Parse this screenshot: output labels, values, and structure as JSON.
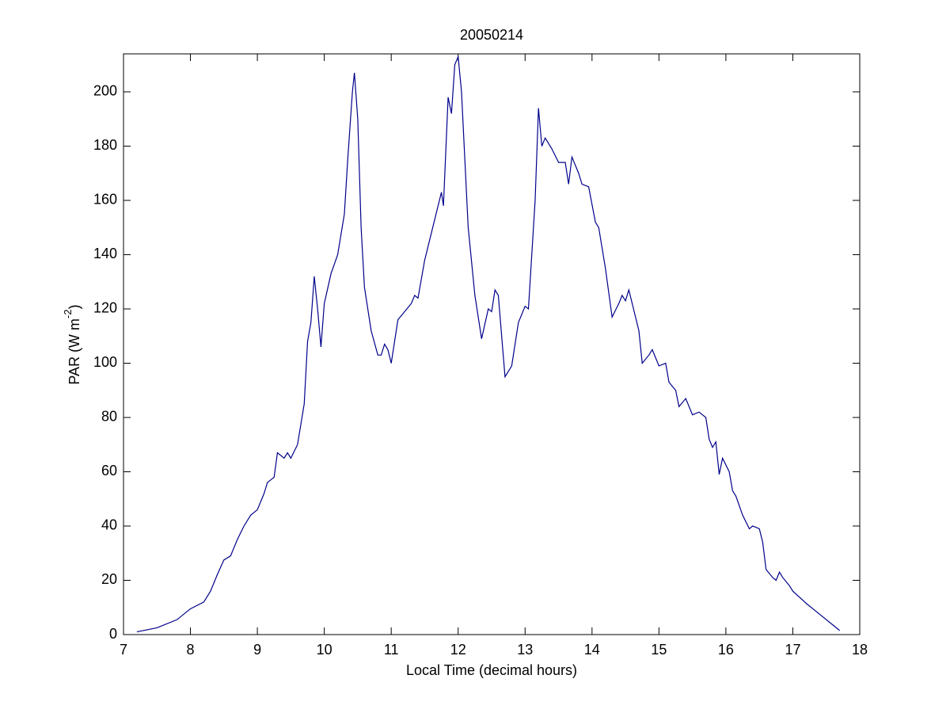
{
  "chart_data": {
    "type": "line",
    "title": "20050214",
    "xlabel": "Local Time (decimal hours)",
    "ylabel_parts": [
      "PAR (W m",
      "-2",
      ")"
    ],
    "x": [
      7.2,
      7.5,
      7.8,
      8.0,
      8.2,
      8.3,
      8.4,
      8.5,
      8.6,
      8.7,
      8.8,
      8.9,
      9.0,
      9.1,
      9.15,
      9.25,
      9.3,
      9.4,
      9.45,
      9.5,
      9.6,
      9.7,
      9.75,
      9.8,
      9.85,
      9.9,
      9.95,
      10.0,
      10.1,
      10.2,
      10.3,
      10.35,
      10.42,
      10.45,
      10.5,
      10.55,
      10.6,
      10.7,
      10.8,
      10.85,
      10.9,
      10.95,
      11.0,
      11.1,
      11.2,
      11.3,
      11.35,
      11.4,
      11.5,
      11.6,
      11.65,
      11.75,
      11.78,
      11.85,
      11.9,
      11.95,
      12.0,
      12.05,
      12.15,
      12.25,
      12.35,
      12.45,
      12.5,
      12.55,
      12.6,
      12.7,
      12.8,
      12.9,
      13.0,
      13.05,
      13.15,
      13.2,
      13.25,
      13.3,
      13.4,
      13.5,
      13.6,
      13.65,
      13.7,
      13.8,
      13.85,
      13.95,
      14.05,
      14.1,
      14.2,
      14.3,
      14.4,
      14.45,
      14.5,
      14.55,
      14.6,
      14.7,
      14.75,
      14.85,
      14.9,
      15.0,
      15.1,
      15.15,
      15.25,
      15.3,
      15.4,
      15.5,
      15.6,
      15.7,
      15.75,
      15.8,
      15.85,
      15.9,
      15.95,
      16.05,
      16.1,
      16.15,
      16.25,
      16.35,
      16.4,
      16.5,
      16.55,
      16.6,
      16.7,
      16.75,
      16.8,
      16.85,
      16.95,
      17.0,
      17.2,
      17.4,
      17.6,
      17.7
    ],
    "values": [
      1,
      2.5,
      5.5,
      9.5,
      12,
      16,
      22,
      27.5,
      29,
      35,
      40,
      44,
      46,
      52,
      56,
      58,
      67,
      65,
      67,
      65,
      70,
      85,
      108,
      115,
      132,
      120,
      106,
      122,
      133,
      140,
      155,
      175,
      200,
      207,
      190,
      150,
      128,
      112,
      103,
      103,
      107,
      105,
      100,
      116,
      119,
      122,
      125,
      124,
      138,
      148,
      153,
      163,
      158,
      198,
      192,
      210,
      213,
      200,
      150,
      125,
      109,
      120,
      119,
      127,
      125,
      95,
      99,
      115,
      121,
      120,
      160,
      194,
      180,
      183,
      179,
      174,
      174,
      166,
      176,
      170,
      166,
      165,
      152,
      150,
      135,
      117,
      122,
      125,
      123,
      127,
      122,
      112,
      100,
      103,
      105,
      99,
      100,
      93,
      90,
      84,
      87,
      81,
      82,
      80,
      72,
      69,
      71,
      59,
      65,
      60,
      53,
      51,
      44,
      39,
      40,
      39,
      34,
      24,
      21,
      20,
      23,
      21,
      18,
      16,
      11.5,
      7.5,
      3.5,
      1.5
    ],
    "color": "#00008b",
    "xlim": [
      7,
      18
    ],
    "xticks": [
      7,
      8,
      9,
      10,
      11,
      12,
      13,
      14,
      15,
      16,
      17,
      18
    ],
    "ylim": [
      0,
      214
    ],
    "yticks": [
      0,
      20,
      40,
      60,
      80,
      100,
      120,
      140,
      160,
      180,
      200
    ]
  }
}
